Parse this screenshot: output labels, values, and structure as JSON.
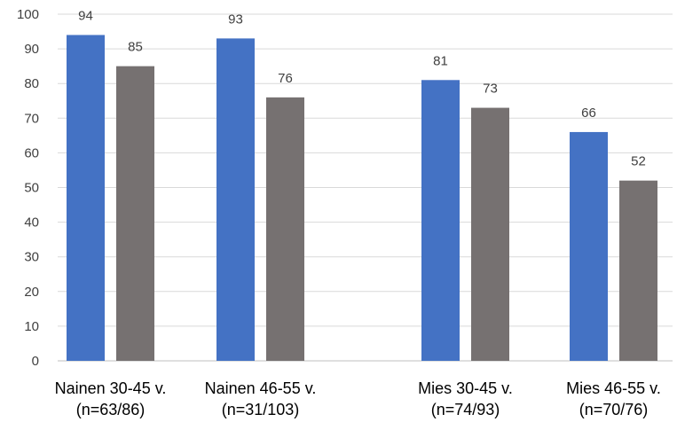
{
  "chart_data": {
    "type": "bar",
    "title": "",
    "xlabel": "",
    "ylabel": "",
    "ylim": [
      0,
      100
    ],
    "yticks": [
      0,
      10,
      20,
      30,
      40,
      50,
      60,
      70,
      80,
      90,
      100
    ],
    "grid": true,
    "legend": "none",
    "categories": [
      {
        "line1": "Nainen 30-45 v.",
        "line2": "(n=63/86)"
      },
      {
        "line1": "Nainen 46-55 v.",
        "line2": "(n=31/103)"
      },
      {
        "line1": "Mies 30-45 v.",
        "line2": "(n=74/93)"
      },
      {
        "line1": "Mies 46-55 v.",
        "line2": "(n=70/76)"
      }
    ],
    "series": [
      {
        "values": [
          94,
          93,
          81,
          66
        ],
        "color": "#4472c4"
      },
      {
        "values": [
          85,
          76,
          73,
          52
        ],
        "color": "#767171"
      }
    ]
  }
}
